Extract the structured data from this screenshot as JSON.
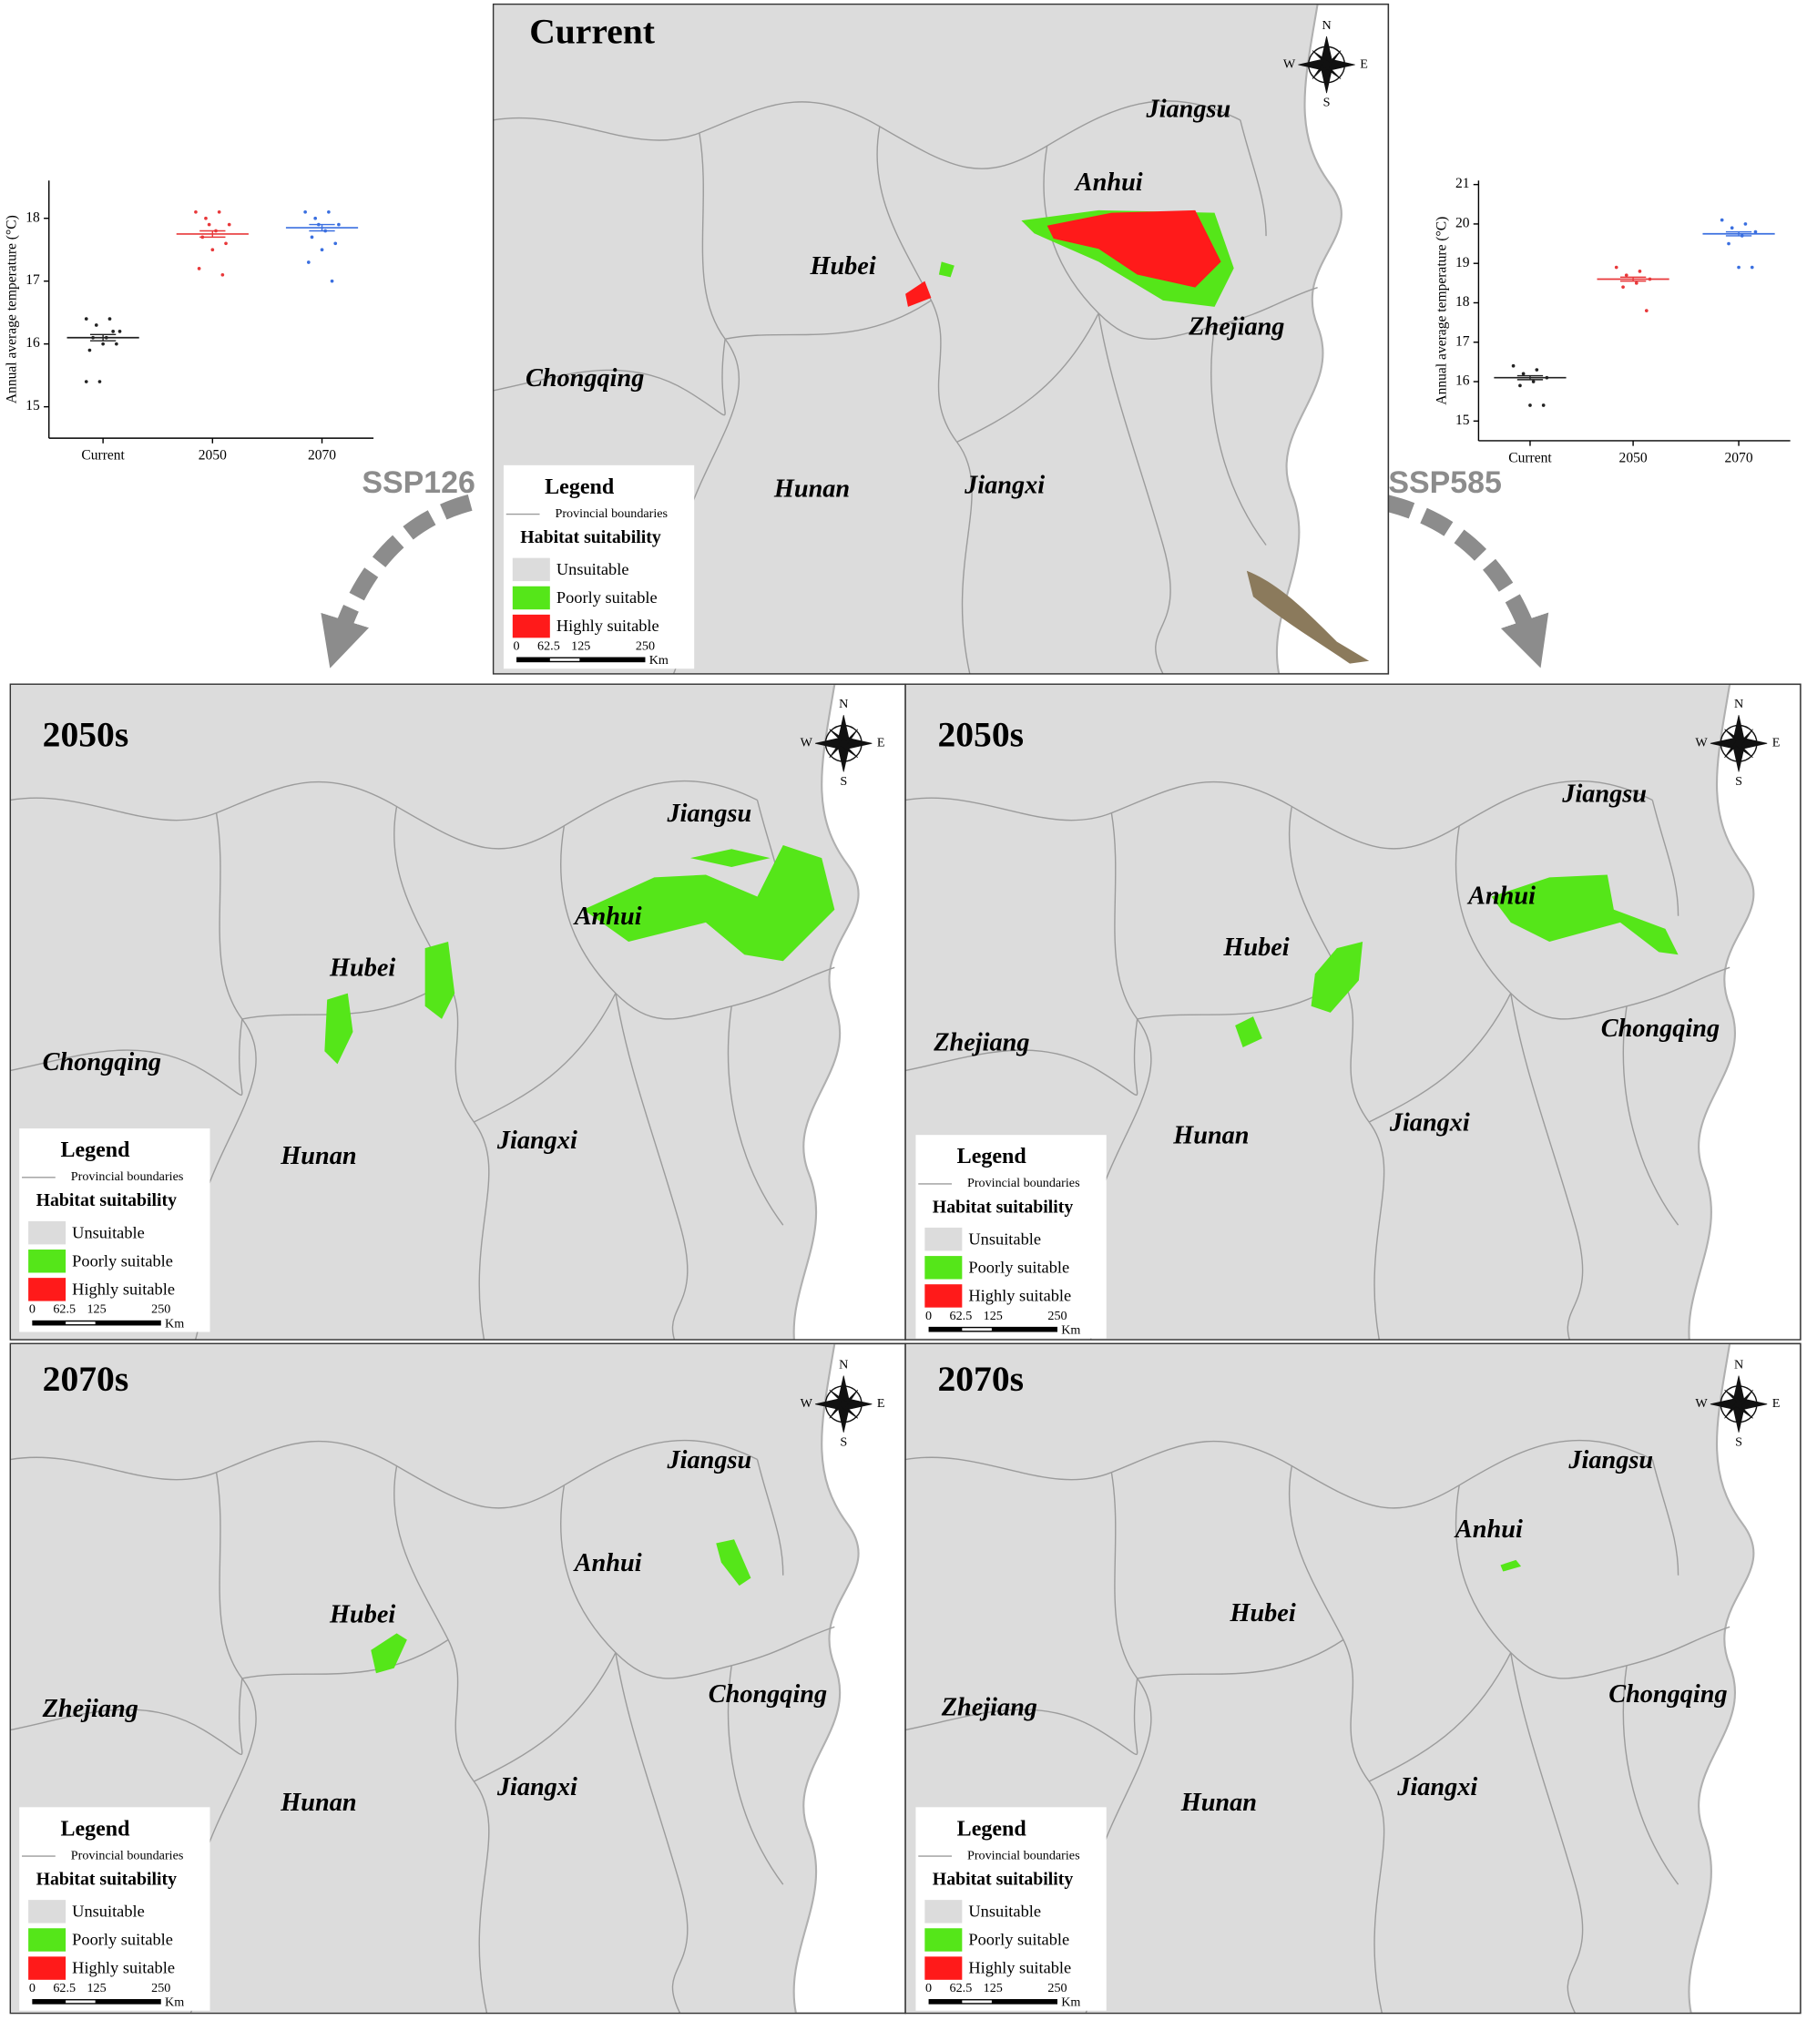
{
  "chart_data": [
    {
      "type": "scatter",
      "y_label": "Annual average temperature (°C)",
      "categories": [
        "Current",
        "2050",
        "2070"
      ],
      "values": [
        16.1,
        17.75,
        17.85
      ],
      "errors": [
        0.05,
        0.05,
        0.05
      ],
      "colors": [
        "#222222",
        "#e8383a",
        "#3a6fe0"
      ],
      "points": [
        [
          16.4,
          16.4,
          16.3,
          16.2,
          16.1,
          16.1,
          16.0,
          16.0,
          15.9,
          16.2,
          15.4,
          15.4
        ],
        [
          18.1,
          18.1,
          18.0,
          17.9,
          17.8,
          17.7,
          17.6,
          17.5,
          17.2,
          17.1,
          17.9
        ],
        [
          18.1,
          18.1,
          18.0,
          17.9,
          17.8,
          17.7,
          17.6,
          17.5,
          17.3,
          17.0,
          17.9
        ]
      ],
      "ylim": [
        14.5,
        18.6
      ],
      "yticks": [
        15,
        16,
        17,
        18
      ]
    },
    {
      "type": "scatter",
      "y_label": "Annual average temperature (°C)",
      "categories": [
        "Current",
        "2050",
        "2070"
      ],
      "values": [
        16.1,
        18.6,
        19.75
      ],
      "errors": [
        0.05,
        0.05,
        0.05
      ],
      "colors": [
        "#222222",
        "#e8383a",
        "#3a6fe0"
      ],
      "points": [
        [
          16.4,
          16.3,
          16.2,
          16.1,
          16.0,
          15.9,
          15.4,
          15.4
        ],
        [
          18.9,
          18.8,
          18.7,
          18.6,
          18.5,
          18.4,
          17.8
        ],
        [
          20.1,
          20.0,
          19.9,
          19.8,
          19.7,
          19.5,
          18.9,
          18.9
        ]
      ],
      "ylim": [
        14.5,
        21.1
      ],
      "yticks": [
        15,
        16,
        17,
        18,
        19,
        20,
        21
      ]
    }
  ],
  "scenarios": [
    "SSP126",
    "SSP585"
  ],
  "legend": {
    "title": "Legend",
    "boundary": "Provincial boundaries",
    "heading": "Habitat suitability",
    "classes": [
      "Unsuitable",
      "Poorly suitable",
      "Highly suitable"
    ],
    "colors": [
      "#dcdcdc",
      "#55e619",
      "#ff1a1a"
    ],
    "scale": [
      0,
      62.5,
      125,
      250
    ],
    "unit": "Km"
  },
  "compass": [
    "N",
    "S",
    "W",
    "E"
  ],
  "maps": [
    {
      "title": "Current",
      "provinces": [
        "Jiangsu",
        "Anhui",
        "Hubei",
        "Zhejiang",
        "Chongqing",
        "Hunan",
        "Jiangxi"
      ]
    },
    {
      "title": "2050s",
      "provinces": [
        "Jiangsu",
        "Anhui",
        "Hubei",
        "Chongqing",
        "Hunan",
        "Jiangxi"
      ]
    },
    {
      "title": "2050s",
      "provinces": [
        "Jiangsu",
        "Anhui",
        "Hubei",
        "Zhejiang",
        "Chongqing",
        "Hunan",
        "Jiangxi"
      ]
    },
    {
      "title": "2070s",
      "provinces": [
        "Jiangsu",
        "Anhui",
        "Hubei",
        "Zhejiang",
        "Chongqing",
        "Hunan",
        "Jiangxi"
      ]
    },
    {
      "title": "2070s",
      "provinces": [
        "Jiangsu",
        "Anhui",
        "Hubei",
        "Zhejiang",
        "Chongqing",
        "Hunan",
        "Jiangxi"
      ]
    }
  ]
}
